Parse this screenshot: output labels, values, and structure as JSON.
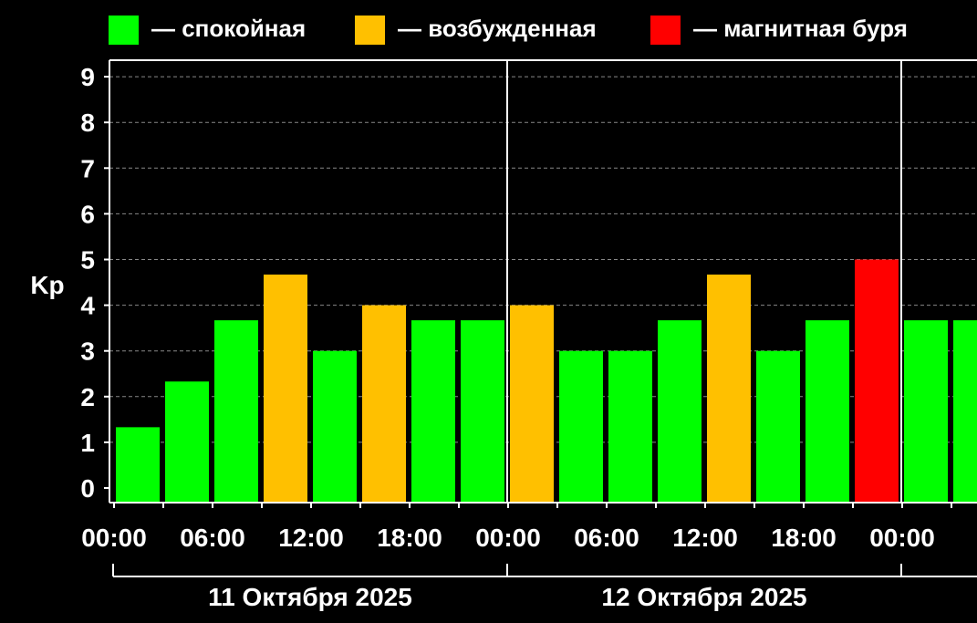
{
  "chart_data": {
    "type": "bar",
    "ylabel": "Kp",
    "ylim": [
      0,
      9
    ],
    "yticks": [
      0,
      1,
      2,
      3,
      4,
      5,
      6,
      7,
      8,
      9
    ],
    "grid": true,
    "legend_position": "top",
    "legend": [
      {
        "label": "— спокойная",
        "color": "#00ff00"
      },
      {
        "label": "— возбужденная",
        "color": "#ffc000"
      },
      {
        "label": "— магнитная буря",
        "color": "#ff0000"
      }
    ],
    "x_tick_labels": [
      "00:00",
      "06:00",
      "12:00",
      "18:00",
      "00:00",
      "06:00",
      "12:00",
      "18:00",
      "00:00",
      "0"
    ],
    "day_labels": [
      "11 Октября 2025",
      "12 Октября 2025"
    ],
    "bar_interval_hours": 3,
    "values": [
      1.33,
      2.33,
      3.67,
      4.67,
      3.0,
      4.0,
      3.67,
      3.67,
      4.0,
      3.0,
      3.0,
      3.67,
      4.67,
      3.0,
      3.67,
      5.0,
      3.67,
      3.67
    ],
    "levels": [
      "quiet",
      "quiet",
      "quiet",
      "unsettled",
      "quiet",
      "unsettled",
      "quiet",
      "quiet",
      "unsettled",
      "quiet",
      "quiet",
      "quiet",
      "unsettled",
      "quiet",
      "quiet",
      "storm",
      "quiet",
      "quiet"
    ],
    "colors": {
      "quiet": "#00ff00",
      "unsettled": "#ffc000",
      "storm": "#ff0000",
      "background": "#000000",
      "axis": "#ffffff",
      "grid": "#888888"
    }
  }
}
